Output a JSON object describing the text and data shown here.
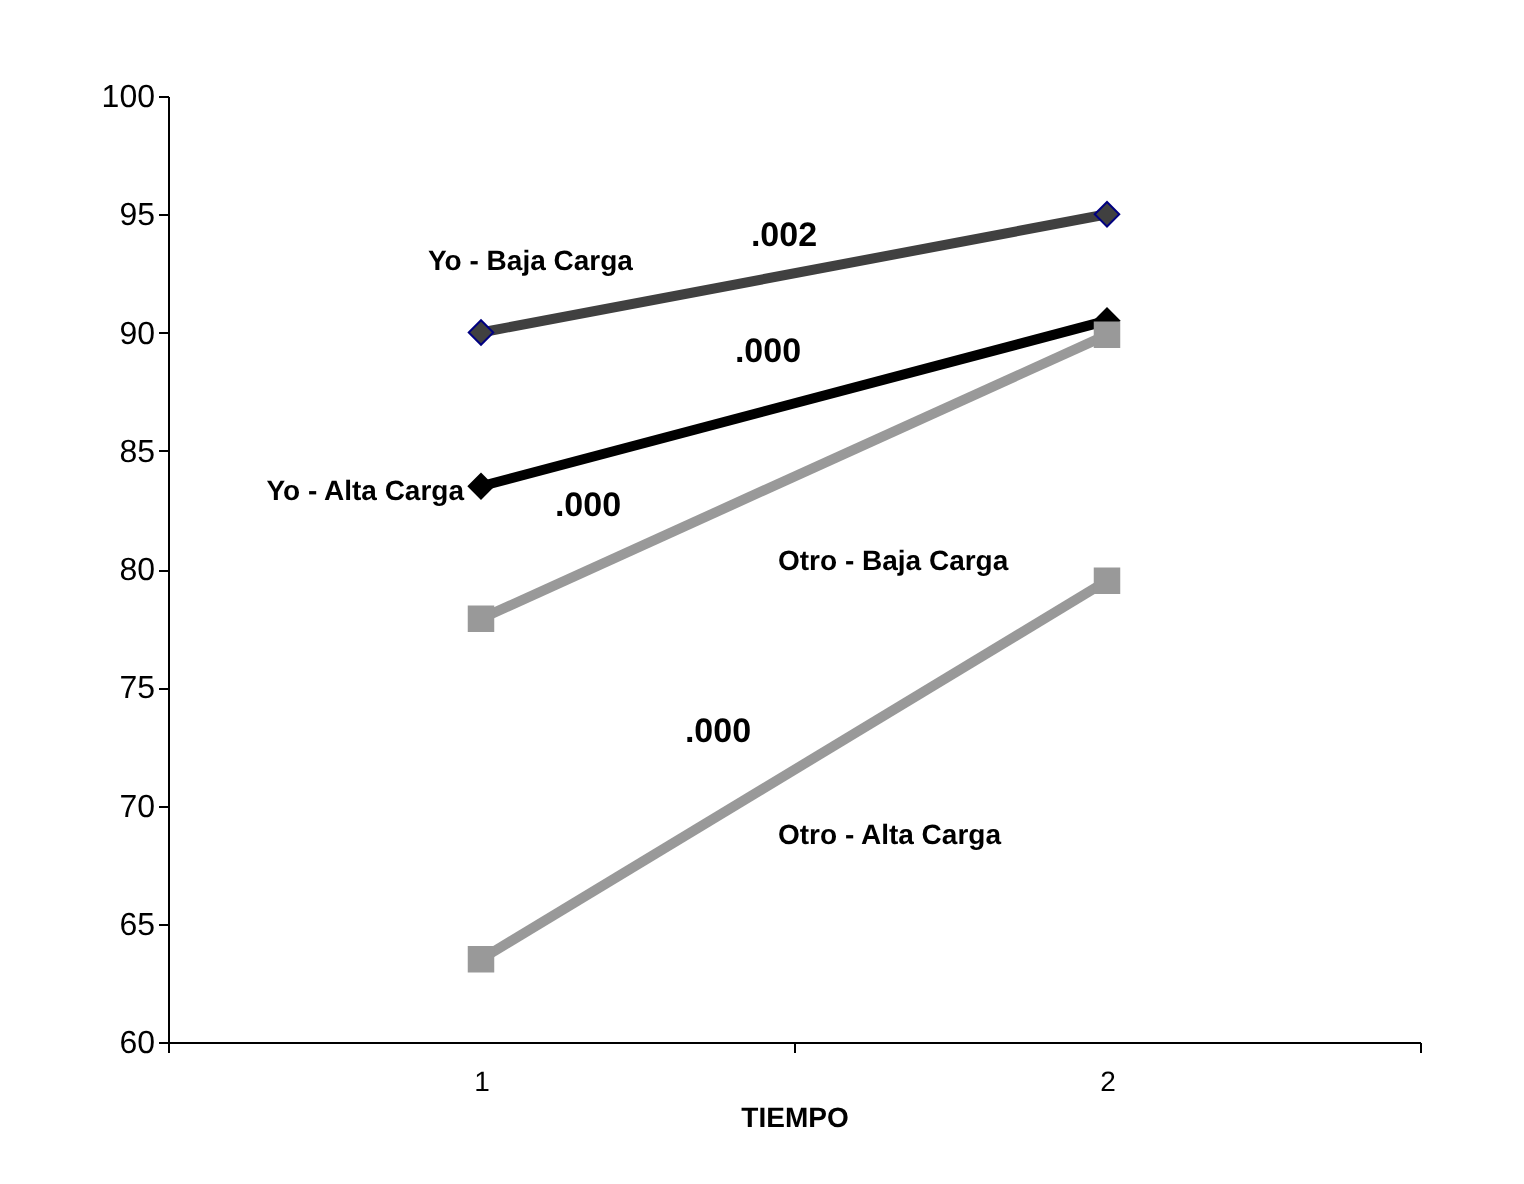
{
  "chart_data": {
    "type": "line",
    "xlabel": "TIEMPO",
    "categories": [
      "1",
      "2"
    ],
    "ylim": [
      60,
      100
    ],
    "yticks": [
      60,
      65,
      70,
      75,
      80,
      85,
      90,
      95,
      100
    ],
    "grid": false,
    "line_style": "solid",
    "series": [
      {
        "name": "Yo - Baja Carga",
        "color": "#404040",
        "marker": "diamond",
        "values": [
          90,
          95
        ]
      },
      {
        "name": "Yo - Alta Carga",
        "color": "#000000",
        "marker": "diamond",
        "values": [
          83.5,
          90.5
        ]
      },
      {
        "name": "Otro - Baja Carga",
        "color": "#999999",
        "marker": "square",
        "values": [
          77.9,
          89.9
        ]
      },
      {
        "name": "Otro - Alta Carga",
        "color": "#999999",
        "marker": "square",
        "values": [
          63.5,
          79.5
        ]
      }
    ],
    "annotations": [
      ".002",
      ".000",
      ".000",
      ".000"
    ]
  }
}
